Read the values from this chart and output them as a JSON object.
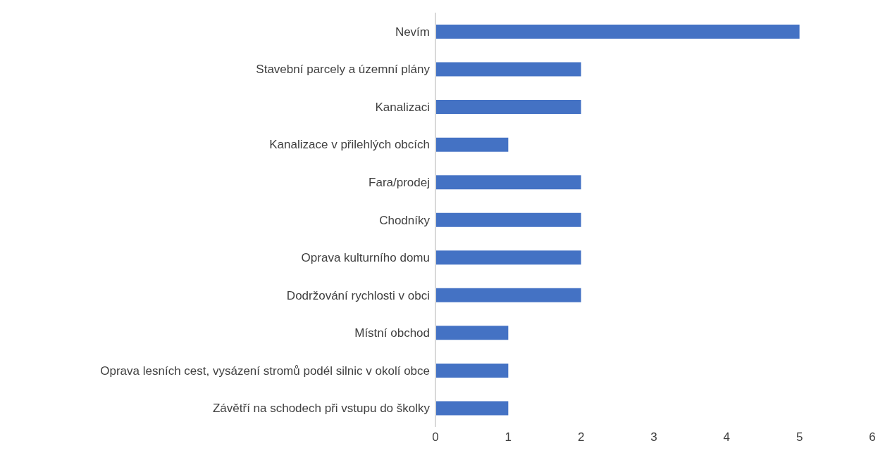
{
  "chart_data": {
    "type": "bar",
    "orientation": "horizontal",
    "categories": [
      "Nevím",
      "Stavební parcely a územní plány",
      "Kanalizaci",
      "Kanalizace v přilehlých obcích",
      "Fara/prodej",
      "Chodníky",
      "Oprava kulturního domu",
      "Dodržování rychlosti v obci",
      "Místní obchod",
      "Oprava lesních cest, vysázení stromů podél silnic v okolí obce",
      "Závětří na schodech při vstupu do školky"
    ],
    "values": [
      5,
      2,
      2,
      1,
      2,
      2,
      2,
      2,
      1,
      1,
      1
    ],
    "color": "#4472c4",
    "xlim": [
      0,
      6
    ],
    "xticks": [
      0,
      1,
      2,
      3,
      4,
      5,
      6
    ],
    "grid": false,
    "legend": false
  }
}
